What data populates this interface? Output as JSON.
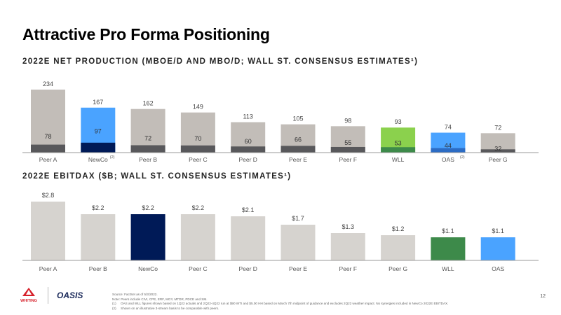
{
  "page": {
    "title": "Attractive Pro Forma Positioning",
    "page_number": "12"
  },
  "colors": {
    "peer_bar_top": "#c2bdb8",
    "peer_bar_base": "#58585b",
    "newco_top": "#4aa3ff",
    "newco_base": "#001a57",
    "wll_top": "#8bd14d",
    "wll_base": "#3d8a4a",
    "oas_top": "#4aa3ff",
    "oas_base": "#2c6cc4",
    "ebitdax_peer": "#d6d3cf",
    "ebitdax_newco": "#001a57",
    "ebitdax_wll": "#3d8a4a",
    "ebitdax_oas": "#4aa3ff"
  },
  "chart_data": [
    {
      "type": "bar",
      "stacked": true,
      "title": "2022E NET PRODUCTION (MBOE/D AND MBO/D; WALL ST. CONSENSUS ESTIMATES¹)",
      "categories": [
        "Peer A",
        "NewCo",
        "Peer B",
        "Peer C",
        "Peer D",
        "Peer E",
        "Peer F",
        "WLL",
        "OAS",
        "Peer G"
      ],
      "category_notes": [
        "",
        "(2)",
        "",
        "",
        "",
        "",
        "",
        "",
        "(2)",
        ""
      ],
      "totals": [
        234,
        167,
        162,
        149,
        113,
        105,
        98,
        93,
        74,
        72
      ],
      "total_labels": [
        "234",
        "167",
        "162",
        "149",
        "113",
        "105",
        "98",
        "93",
        "74",
        "72"
      ],
      "inner_values": [
        78,
        97,
        72,
        70,
        60,
        66,
        55,
        53,
        44,
        32
      ],
      "inner_labels": [
        "78",
        "97",
        "72",
        "70",
        "60",
        "66",
        "55",
        "53",
        "44",
        "32"
      ],
      "ylim": [
        0,
        234
      ]
    },
    {
      "type": "bar",
      "title": "2022E EBITDAX ($B; WALL ST. CONSENSUS ESTIMATES¹)",
      "categories": [
        "Peer A",
        "Peer B",
        "NewCo",
        "Peer C",
        "Peer D",
        "Peer E",
        "Peer F",
        "Peer G",
        "WLL",
        "OAS"
      ],
      "values": [
        2.8,
        2.2,
        2.2,
        2.2,
        2.1,
        1.7,
        1.3,
        1.2,
        1.1,
        1.1
      ],
      "value_labels": [
        "$2.8",
        "$2.2",
        "$2.2",
        "$2.2",
        "$2.1",
        "$1.7",
        "$1.3",
        "$1.2",
        "$1.1",
        "$1.1"
      ],
      "ylim": [
        0,
        2.8
      ]
    }
  ],
  "footer": {
    "logo_left": "WHITING",
    "logo_right": "OASIS",
    "source": "Source: FactSet as of 5/3/2022.",
    "note": "Note: Peers include CIVI, CPE, ERF, MGY, MTDR, PDCE and SM.",
    "footnotes": [
      {
        "num": "(1)",
        "text": "OAS and WLL figures shown based on 1Q22 actuals and 2Q22-4Q22 run at $90 WTI and $5.00 HH based on March 7th midpoint of guidance and excludes 2Q22 weather impact. No synergies included in NewCo 2022E EBITDAX."
      },
      {
        "num": "(2)",
        "text": "Shown on an illustrative 3-stream basis to be comparable with peers."
      }
    ]
  }
}
